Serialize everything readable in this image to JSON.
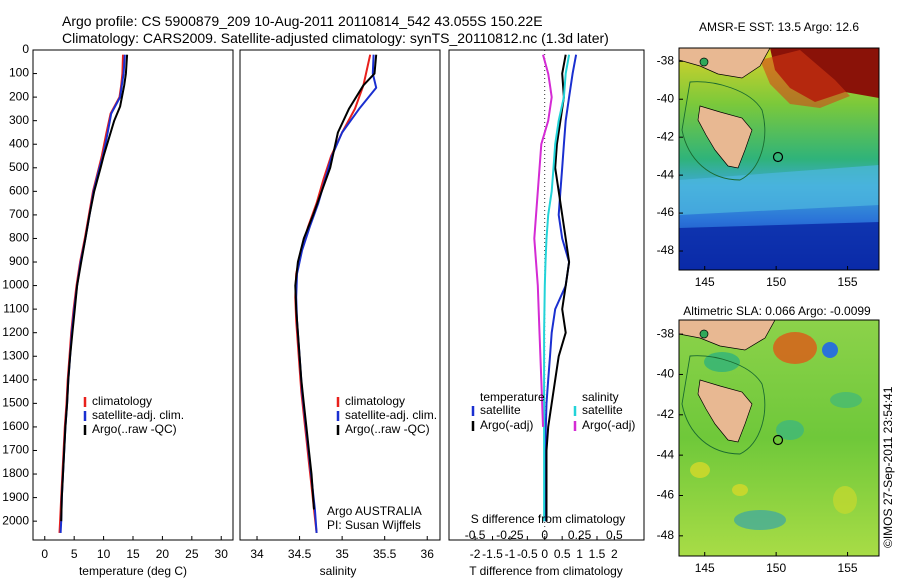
{
  "title_line1": "Argo profile: CS 5900879_209 10-Aug-2011 20110814_542 43.055S 150.22E",
  "title_line2": "Climatology: CARS2009. Satellite-adjusted climatology: synTS_20110812.nc (1.3d later)",
  "footer": "©IMOS 27-Sep-2011 23:54:41",
  "colors": {
    "climatology": "#e8201c",
    "satellite": "#1a2fd0",
    "argo": "#000000",
    "sat_salt": "#22d3d8",
    "argo_salt": "#d42bd4"
  },
  "chart_data": [
    {
      "type": "line",
      "xlabel": "temperature (deg C)",
      "xticks": [
        "0",
        "5",
        "10",
        "15",
        "20",
        "25",
        "30"
      ],
      "xlim": [
        -2,
        32
      ],
      "ylim": [
        2080,
        0
      ],
      "yticks": [
        "0",
        "100",
        "200",
        "300",
        "400",
        "500",
        "600",
        "700",
        "800",
        "900",
        "1000",
        "1100",
        "1200",
        "1300",
        "1400",
        "1500",
        "1600",
        "1700",
        "1800",
        "1900",
        "2000"
      ],
      "legend": [
        "climatology",
        "satellite-adj. clim.",
        "Argo(..raw -QC)"
      ],
      "series": [
        {
          "name": "climatology",
          "x": [
            13.3,
            13.2,
            13.0,
            12.7,
            11.2,
            10.5,
            9.7,
            9.2,
            8.2,
            7.5,
            6.8,
            6.0,
            5.4,
            4.9,
            4.5,
            4.2,
            3.9,
            3.7,
            3.4,
            3.2,
            3.0,
            2.8,
            2.6,
            2.5
          ],
          "y": [
            20,
            100,
            150,
            200,
            270,
            350,
            450,
            500,
            600,
            700,
            800,
            900,
            1000,
            1100,
            1200,
            1300,
            1400,
            1500,
            1600,
            1700,
            1800,
            1900,
            2000,
            2050
          ]
        },
        {
          "name": "satellite-adj. clim.",
          "x": [
            13.6,
            13.4,
            13.1,
            12.8,
            11.3,
            10.7,
            9.9,
            9.3,
            8.3,
            7.6,
            6.9,
            6.1,
            5.5,
            5.0,
            4.6,
            4.3,
            4.0,
            3.8,
            3.5,
            3.3,
            3.1,
            2.9,
            2.8,
            2.7
          ],
          "y": [
            20,
            100,
            150,
            200,
            270,
            350,
            450,
            500,
            600,
            700,
            800,
            900,
            1000,
            1100,
            1200,
            1300,
            1400,
            1500,
            1600,
            1700,
            1800,
            1900,
            2000,
            2050
          ]
        },
        {
          "name": "Argo(..raw -QC)",
          "x": [
            14.0,
            13.8,
            13.5,
            12.8,
            11.8,
            10.0,
            9.5,
            8.4,
            7.6,
            6.9,
            6.2,
            5.5,
            5.1,
            4.7,
            4.3,
            4.0,
            3.8,
            3.5,
            3.3,
            3.1,
            2.9,
            2.8
          ],
          "y": [
            20,
            100,
            150,
            240,
            300,
            450,
            500,
            600,
            700,
            800,
            900,
            1000,
            1100,
            1200,
            1300,
            1400,
            1500,
            1600,
            1700,
            1800,
            1900,
            2000
          ]
        }
      ]
    },
    {
      "type": "line",
      "xlabel": "salinity",
      "xticks": [
        "34",
        "34.5",
        "35",
        "35.5",
        "36"
      ],
      "xlim": [
        33.8,
        36.15
      ],
      "ylim": [
        2080,
        0
      ],
      "legend": [
        "climatology",
        "satellite-adj. clim.",
        "Argo(..raw -QC)"
      ],
      "annotation": [
        "Argo AUSTRALIA",
        "PI: Susan Wijffels"
      ],
      "series": [
        {
          "name": "climatology",
          "x": [
            35.33,
            35.28,
            35.25,
            35.15,
            35.0,
            34.87,
            34.78,
            34.7,
            34.6,
            34.52,
            34.46,
            34.45,
            34.46,
            34.48,
            34.5,
            34.52,
            34.55,
            34.58,
            34.61,
            34.64,
            34.67,
            34.7
          ],
          "y": [
            20,
            100,
            150,
            250,
            350,
            450,
            550,
            650,
            750,
            850,
            950,
            1050,
            1150,
            1250,
            1350,
            1450,
            1550,
            1650,
            1750,
            1850,
            1950,
            2050
          ]
        },
        {
          "name": "satellite-adj. clim.",
          "x": [
            35.37,
            35.36,
            35.4,
            35.2,
            35.0,
            34.88,
            34.8,
            34.72,
            34.62,
            34.53,
            34.47,
            34.46,
            34.47,
            34.49,
            34.51,
            34.53,
            34.56,
            34.59,
            34.62,
            34.65,
            34.68,
            34.7
          ],
          "y": [
            20,
            100,
            160,
            250,
            350,
            450,
            550,
            650,
            750,
            850,
            950,
            1050,
            1150,
            1250,
            1350,
            1450,
            1550,
            1650,
            1750,
            1850,
            1950,
            2050
          ]
        },
        {
          "name": "Argo(..raw -QC)",
          "x": [
            35.4,
            35.38,
            35.25,
            35.08,
            34.95,
            34.86,
            34.76,
            34.66,
            34.55,
            34.48,
            34.45,
            34.46,
            34.48,
            34.5,
            34.52,
            34.55,
            34.58,
            34.61,
            34.64,
            34.67
          ],
          "y": [
            20,
            100,
            150,
            250,
            350,
            500,
            600,
            700,
            800,
            900,
            1000,
            1100,
            1200,
            1300,
            1400,
            1500,
            1600,
            1700,
            1800,
            1950
          ]
        }
      ]
    },
    {
      "type": "line",
      "xlabel": "T difference from climatology",
      "xlabel_top": "S difference from climatology",
      "xticks": [
        "-2",
        "-1.5",
        "-1",
        "-0.5",
        "0",
        "0.5",
        "1",
        "1.5",
        "2"
      ],
      "xticks_top": [
        "-0.5",
        "-0.25",
        "0",
        "0.25",
        "0.5"
      ],
      "xlim": [
        -2.75,
        2.85
      ],
      "ylim": [
        2080,
        0
      ],
      "legend_left": [
        "temperature",
        "satellite",
        "Argo(-adj)"
      ],
      "legend_right": [
        "salinity",
        "satellite",
        "Argo(-adj)"
      ],
      "series": [
        {
          "name": "temperature satellite",
          "x": [
            0.9,
            0.8,
            0.7,
            0.6,
            0.55,
            0.5,
            0.45,
            0.4,
            0.5,
            0.7,
            0.6,
            0.3,
            0.2,
            0.15,
            0.1,
            0.05,
            0.03,
            0.02,
            0.02,
            0.02
          ],
          "y": [
            20,
            100,
            200,
            300,
            400,
            500,
            600,
            700,
            800,
            900,
            1000,
            1100,
            1200,
            1300,
            1400,
            1500,
            1600,
            1700,
            1800,
            2000
          ]
        },
        {
          "name": "temperature Argo(-adj)",
          "x": [
            0.6,
            0.5,
            0.55,
            0.45,
            0.35,
            0.3,
            0.4,
            0.5,
            0.6,
            0.7,
            0.6,
            0.5,
            0.6,
            0.4,
            0.3,
            0.2,
            0.1,
            0.05,
            0.05,
            0.05
          ],
          "y": [
            20,
            100,
            200,
            300,
            400,
            500,
            600,
            700,
            800,
            900,
            1000,
            1100,
            1200,
            1300,
            1400,
            1500,
            1600,
            1700,
            1800,
            2000
          ]
        },
        {
          "name": "salinity satellite",
          "x": [
            0.7,
            0.6,
            0.55,
            0.4,
            0.3,
            0.25,
            0.2,
            0.1,
            0.05,
            0.02,
            0,
            -0.02,
            -0.02,
            -0.02,
            -0.02,
            -0.02,
            -0.02
          ],
          "y": [
            20,
            100,
            200,
            300,
            400,
            500,
            600,
            700,
            800,
            900,
            1000,
            1200,
            1400,
            1600,
            1800,
            1900,
            2000
          ]
        },
        {
          "name": "salinity Argo(-adj)",
          "x": [
            -0.05,
            0.1,
            0.15,
            0.2,
            0.1,
            -0.1,
            -0.2,
            -0.3,
            -0.2,
            -0.15,
            -0.1,
            -0.05
          ],
          "y": [
            20,
            100,
            150,
            200,
            300,
            400,
            600,
            800,
            1000,
            1200,
            1400,
            1600
          ]
        }
      ]
    },
    {
      "type": "heatmap",
      "title": "AMSR-E SST: 13.5 Argo: 12.6",
      "xticks": [
        "145",
        "150",
        "155"
      ],
      "yticks": [
        "-38",
        "-40",
        "-42",
        "-44",
        "-46",
        "-48"
      ]
    },
    {
      "type": "heatmap",
      "title": "Altimetric SLA: 0.066 Argo: -0.0099",
      "xticks": [
        "145",
        "150",
        "155"
      ],
      "yticks": [
        "-38",
        "-40",
        "-42",
        "-44",
        "-46",
        "-48"
      ]
    }
  ]
}
